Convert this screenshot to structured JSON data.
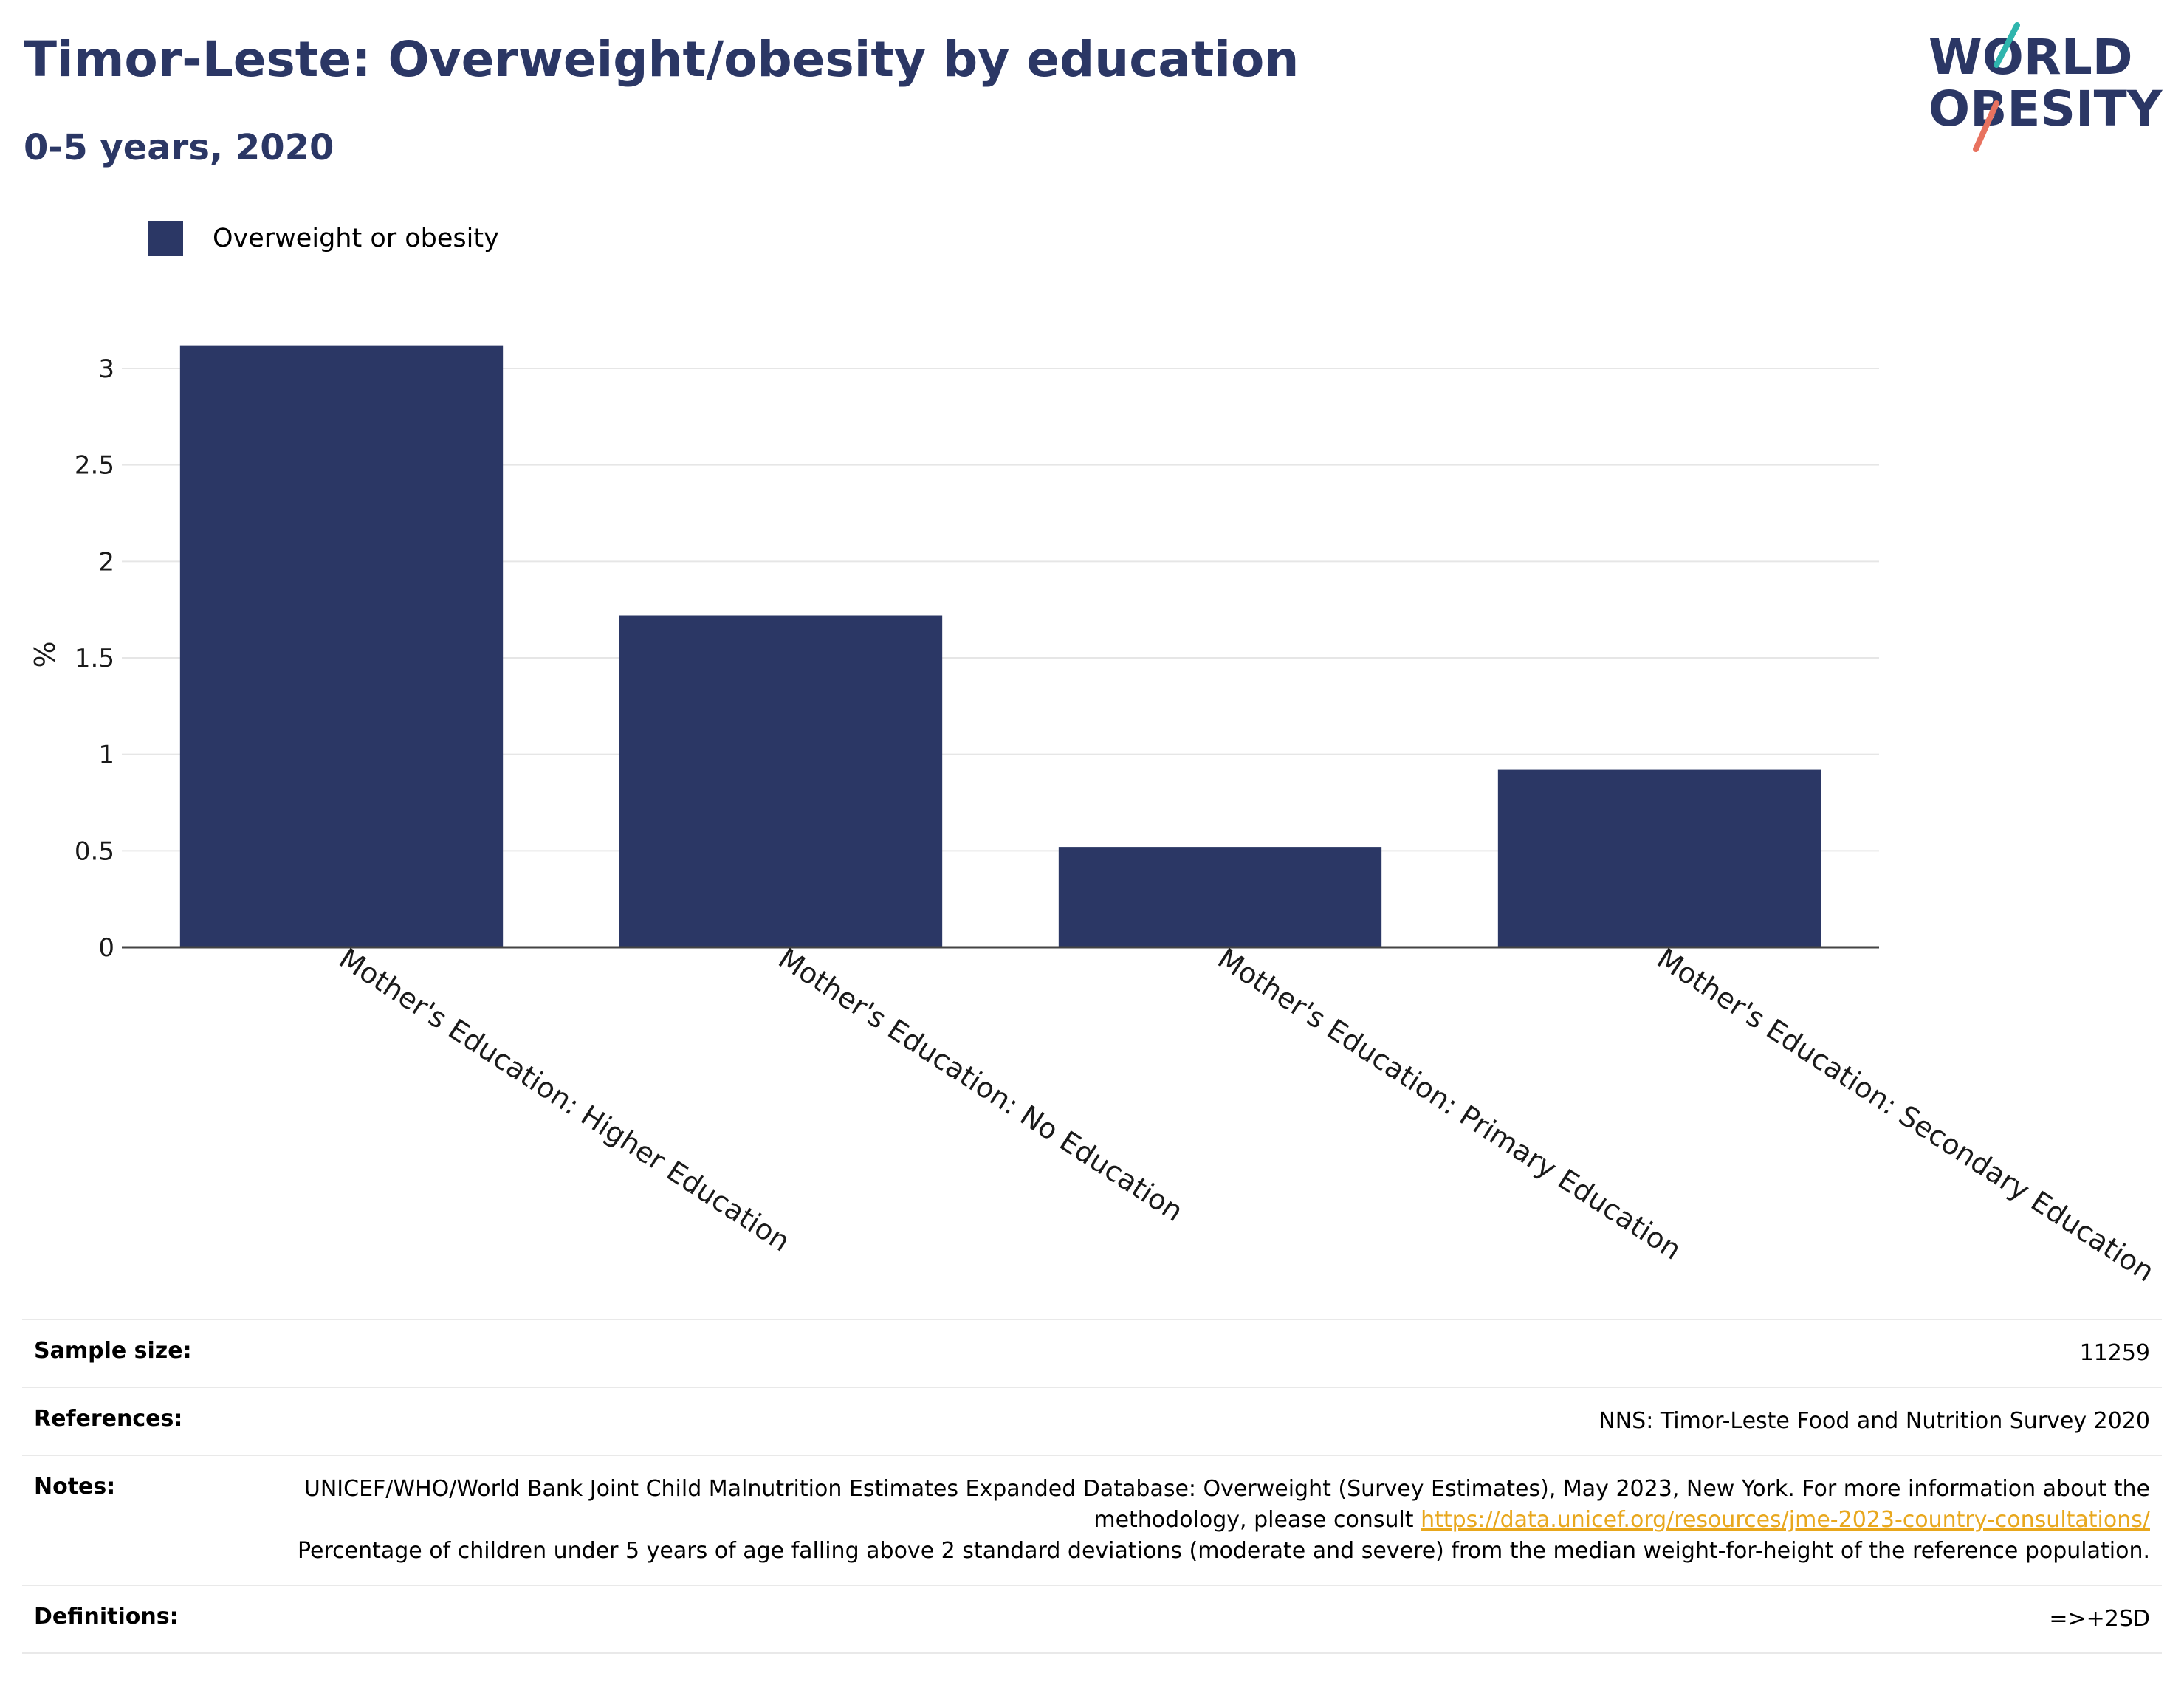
{
  "header": {
    "title": "Timor-Leste: Overweight/obesity by education",
    "subtitle": "0-5 years, 2020"
  },
  "logo": {
    "line1": "WORLD",
    "line2": "OBESITY",
    "colors": {
      "text": "#2b3765",
      "slash_top": "#2fb5ad",
      "slash_bottom": "#e8725f"
    }
  },
  "colors": {
    "bar": "#2b3765",
    "grid": "#e6e6e6",
    "axis": "#444444",
    "link": "#e8a71d"
  },
  "chart_data": {
    "type": "bar",
    "categories": [
      "Mother's Education: Higher Education",
      "Mother's Education: No Education",
      "Mother's Education: Primary Education",
      "Mother's Education: Secondary Education"
    ],
    "series": [
      {
        "name": "Overweight or obesity",
        "values": [
          3.12,
          1.72,
          0.52,
          0.92
        ]
      }
    ],
    "ylabel": "%",
    "xlabel": "",
    "ylim": [
      0,
      3
    ],
    "yticks": [
      0,
      0.5,
      1,
      1.5,
      2,
      2.5,
      3
    ],
    "ytick_labels": [
      "0",
      "0.5",
      "1",
      "1.5",
      "2",
      "2.5",
      "3"
    ],
    "grid": true,
    "legend_position": "top-left"
  },
  "info": {
    "sample_size": {
      "label": "Sample size:",
      "value": "11259"
    },
    "references": {
      "label": "References:",
      "value": "NNS: Timor-Leste Food and Nutrition Survey 2020"
    },
    "notes": {
      "label": "Notes:",
      "text_before": "UNICEF/WHO/World Bank Joint Child Malnutrition Estimates Expanded Database: Overweight (Survey Estimates), May 2023, New York. For more information about the methodology, please consult ",
      "link": "https://data.unicef.org/resources/jme-2023-country-consultations/",
      "text_after": "Percentage of children under 5 years of age falling above 2 standard deviations (moderate and severe) from the median weight-for-height of the reference population."
    },
    "definitions": {
      "label": "Definitions:",
      "value": "=>+2SD"
    }
  }
}
